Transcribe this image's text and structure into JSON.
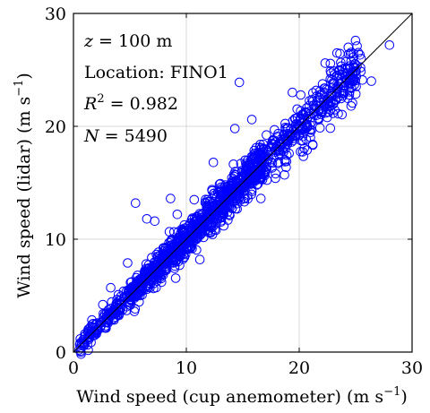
{
  "chart_data": {
    "type": "scatter",
    "xlabel": "Wind speed (cup anemometer) (m s",
    "xlabel_sup": "−1",
    "xlabel_close": ")",
    "ylabel": "Wind speed (lidar) (m s",
    "ylabel_sup": "−1",
    "ylabel_close": ")",
    "xlim": [
      0,
      30
    ],
    "ylim": [
      0,
      30
    ],
    "xticks": [
      "0",
      "10",
      "20",
      "30"
    ],
    "yticks": [
      "0",
      "10",
      "20",
      "30"
    ],
    "grid": true,
    "reference_line": "1:1",
    "marker_color": "#0000ff",
    "annotations": {
      "height_prefix": "z",
      "height_value": " = 100 m",
      "location": "Location: FINO1",
      "r2_prefix": "R",
      "r2_sup": "2",
      "r2_value": " = 0.982",
      "n_prefix": "N",
      "n_value": " = 5490"
    },
    "cloud": {
      "count_drawn": 1400,
      "x_range": [
        0.5,
        25.5
      ],
      "typical_scatter": 0.7
    },
    "outliers": [
      [
        14.7,
        23.9
      ],
      [
        15.8,
        20.6
      ],
      [
        14.3,
        19.8
      ],
      [
        5.5,
        13.2
      ],
      [
        6.5,
        11.8
      ],
      [
        7.2,
        11.6
      ],
      [
        8.6,
        13.6
      ],
      [
        13.9,
        14.5
      ],
      [
        15.0,
        14.8
      ],
      [
        12.4,
        16.8
      ],
      [
        17.9,
        15.4
      ],
      [
        19.1,
        17.6
      ],
      [
        22.3,
        25.6
      ],
      [
        25.6,
        24.1
      ],
      [
        26.4,
        24.0
      ],
      [
        28.0,
        27.2
      ],
      [
        23.8,
        24.6
      ],
      [
        19.4,
        23.0
      ],
      [
        3.3,
        5.7
      ],
      [
        2.6,
        4.2
      ],
      [
        4.8,
        7.9
      ],
      [
        9.8,
        8.4
      ],
      [
        11.2,
        8.2
      ],
      [
        16.6,
        13.6
      ],
      [
        18.7,
        15.7
      ],
      [
        20.7,
        17.9
      ],
      [
        21.2,
        18.4
      ],
      [
        10.7,
        13.5
      ],
      [
        9.2,
        12.2
      ],
      [
        24.6,
        21.8
      ]
    ]
  }
}
